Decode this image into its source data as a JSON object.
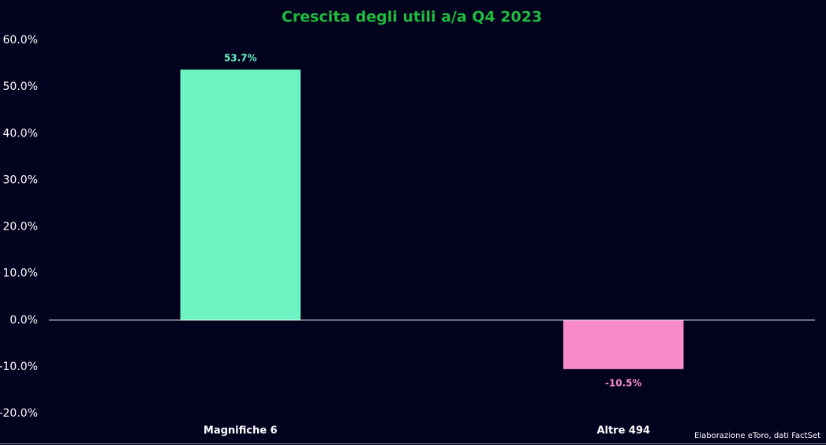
{
  "chart_data": {
    "type": "bar",
    "title": "Crescita degli utili a/a Q4 2023",
    "categories": [
      "Magnifiche 6",
      "Altre 494"
    ],
    "values": [
      53.7,
      -10.5
    ],
    "value_labels": [
      "53.7%",
      "-10.5%"
    ],
    "colors": [
      "#6cf5c2",
      "#f78bcb"
    ],
    "ylim": [
      -20,
      60
    ],
    "yticks": [
      {
        "value": -20,
        "label": "-20.0%"
      },
      {
        "value": -10,
        "label": "-10.0%"
      },
      {
        "value": 0,
        "label": "0.0%"
      },
      {
        "value": 10,
        "label": "10.0%"
      },
      {
        "value": 20,
        "label": "20.0%"
      },
      {
        "value": 30,
        "label": "30.0%"
      },
      {
        "value": 40,
        "label": "40.0%"
      },
      {
        "value": 50,
        "label": "50.0%"
      },
      {
        "value": 60,
        "label": "60.0%"
      }
    ],
    "source": "Elaborazione eToro, dati FactSet",
    "grid": false
  }
}
